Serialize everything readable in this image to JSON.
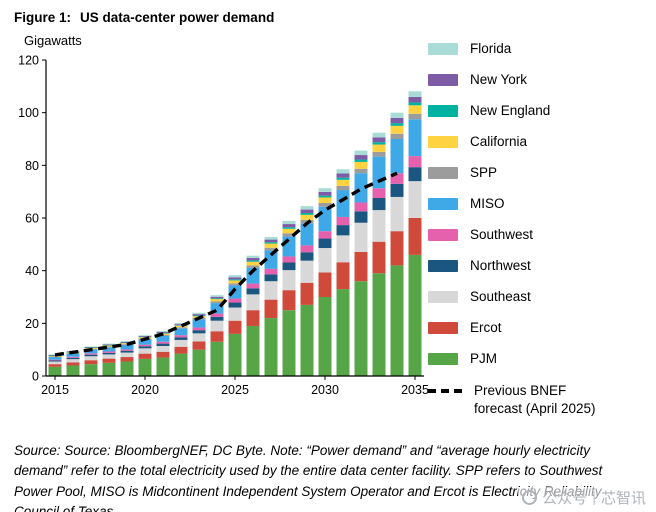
{
  "figure": {
    "title_prefix": "Figure 1:",
    "title_text": "US data-center power demand",
    "unit_label": "Gigawatts",
    "source_note": "Source: Source: BloombergNEF, DC Byte. Note: “Power demand” and “average hourly electricity demand” refer to the total electricity used by the entire data center facility. SPP refers to Southwest Power Pool, MISO is Midcontinent Independent System Operator and Ercot is Electricity Reliability Council of Texas."
  },
  "watermark": {
    "prefix": "公众号",
    "name": "芯智讯"
  },
  "legend": [
    {
      "label": "Florida",
      "color": "#a9dcd6"
    },
    {
      "label": "New York",
      "color": "#7d5ba6"
    },
    {
      "label": "New England",
      "color": "#00b2a0"
    },
    {
      "label": "California",
      "color": "#ffd23f"
    },
    {
      "label": "SPP",
      "color": "#9c9c9c"
    },
    {
      "label": "MISO",
      "color": "#3fa9e8"
    },
    {
      "label": "Southwest",
      "color": "#e661ad"
    },
    {
      "label": "Northwest",
      "color": "#1a567f"
    },
    {
      "label": "Southeast",
      "color": "#d8d8d8"
    },
    {
      "label": "Ercot",
      "color": "#d04a3c"
    },
    {
      "label": "PJM",
      "color": "#56a647"
    }
  ],
  "legend_forecast": {
    "label": "Previous BNEF forecast (April 2025)"
  },
  "chart_data": {
    "type": "bar",
    "stacked": true,
    "title": "US data-center power demand",
    "ylabel": "Gigawatts",
    "ylim": [
      0,
      120
    ],
    "yticks": [
      0,
      20,
      40,
      60,
      80,
      100,
      120
    ],
    "xticks": [
      2015,
      2020,
      2025,
      2030,
      2035
    ],
    "legend_position": "right",
    "x": [
      2015,
      2016,
      2017,
      2018,
      2019,
      2020,
      2021,
      2022,
      2023,
      2024,
      2025,
      2026,
      2027,
      2028,
      2029,
      2030,
      2031,
      2032,
      2033,
      2034,
      2035
    ],
    "series": [
      {
        "name": "PJM",
        "color": "#56a647",
        "values": [
          3.5,
          4.0,
          4.5,
          5.0,
          5.5,
          6.5,
          7.0,
          8.5,
          10.0,
          13.0,
          16.0,
          19.0,
          22.0,
          25.0,
          27.0,
          30.0,
          33.0,
          36.0,
          39.0,
          42.0,
          46.0
        ]
      },
      {
        "name": "Ercot",
        "color": "#d04a3c",
        "values": [
          1.0,
          1.2,
          1.5,
          1.6,
          1.7,
          2.0,
          2.2,
          2.6,
          3.1,
          4.0,
          5.0,
          6.0,
          7.0,
          7.6,
          8.4,
          9.3,
          10.2,
          11.1,
          12.0,
          13.0,
          14.0
        ]
      },
      {
        "name": "Southeast",
        "color": "#d8d8d8",
        "values": [
          1.0,
          1.2,
          1.5,
          1.6,
          1.7,
          2.0,
          2.2,
          2.6,
          3.1,
          4.0,
          5.0,
          6.0,
          7.0,
          7.6,
          8.4,
          9.3,
          10.2,
          11.1,
          12.0,
          13.0,
          14.0
        ]
      },
      {
        "name": "Northwest",
        "color": "#1a567f",
        "values": [
          0.4,
          0.5,
          0.6,
          0.6,
          0.7,
          0.8,
          0.9,
          1.0,
          1.2,
          1.5,
          1.9,
          2.3,
          2.6,
          2.9,
          3.2,
          3.6,
          3.9,
          4.3,
          4.6,
          5.0,
          5.3
        ]
      },
      {
        "name": "Southwest",
        "color": "#e661ad",
        "values": [
          0.3,
          0.4,
          0.5,
          0.5,
          0.5,
          0.6,
          0.7,
          0.8,
          1.0,
          1.2,
          1.5,
          1.8,
          2.1,
          2.3,
          2.6,
          2.8,
          3.1,
          3.4,
          3.7,
          4.0,
          4.2
        ]
      },
      {
        "name": "MISO",
        "color": "#3fa9e8",
        "values": [
          1.0,
          1.2,
          1.5,
          1.6,
          1.7,
          2.0,
          2.2,
          2.6,
          3.1,
          4.0,
          5.0,
          6.0,
          7.0,
          7.6,
          8.4,
          9.3,
          10.2,
          11.1,
          12.0,
          13.0,
          14.0
        ]
      },
      {
        "name": "SPP",
        "color": "#9c9c9c",
        "values": [
          0.2,
          0.2,
          0.2,
          0.3,
          0.3,
          0.3,
          0.4,
          0.4,
          0.5,
          0.6,
          0.8,
          0.9,
          1.0,
          1.2,
          1.3,
          1.4,
          1.6,
          1.7,
          1.8,
          2.0,
          2.1
        ]
      },
      {
        "name": "California",
        "color": "#ffd23f",
        "values": [
          0.3,
          0.3,
          0.4,
          0.4,
          0.4,
          0.5,
          0.5,
          0.6,
          0.7,
          0.9,
          1.1,
          1.4,
          1.6,
          1.7,
          1.9,
          2.1,
          2.3,
          2.6,
          2.8,
          3.0,
          3.2
        ]
      },
      {
        "name": "New England",
        "color": "#00b2a0",
        "values": [
          0.1,
          0.1,
          0.1,
          0.1,
          0.2,
          0.2,
          0.2,
          0.2,
          0.3,
          0.3,
          0.4,
          0.5,
          0.5,
          0.6,
          0.7,
          0.7,
          0.8,
          0.9,
          0.9,
          1.0,
          1.1
        ]
      },
      {
        "name": "New York",
        "color": "#7d5ba6",
        "values": [
          0.2,
          0.2,
          0.2,
          0.3,
          0.3,
          0.3,
          0.4,
          0.4,
          0.5,
          0.6,
          0.8,
          0.9,
          1.0,
          1.2,
          1.3,
          1.4,
          1.6,
          1.7,
          1.8,
          2.0,
          2.1
        ]
      },
      {
        "name": "Florida",
        "color": "#a9dcd6",
        "values": [
          0.2,
          0.2,
          0.2,
          0.3,
          0.3,
          0.3,
          0.4,
          0.4,
          0.5,
          0.6,
          0.8,
          0.9,
          1.0,
          1.2,
          1.3,
          1.4,
          1.6,
          1.7,
          1.8,
          2.0,
          2.1
        ]
      }
    ],
    "forecast_line": {
      "name": "Previous BNEF forecast (April 2025)",
      "color": "#000000",
      "x": [
        2015,
        2016,
        2017,
        2018,
        2019,
        2020,
        2021,
        2022,
        2023,
        2024,
        2025,
        2026,
        2027,
        2028,
        2029,
        2030,
        2031,
        2032,
        2033,
        2034
      ],
      "values": [
        8,
        9,
        10,
        11,
        12,
        14,
        16,
        19,
        22,
        25,
        33,
        40,
        46,
        52,
        58,
        63,
        67,
        71,
        74,
        77
      ]
    }
  }
}
